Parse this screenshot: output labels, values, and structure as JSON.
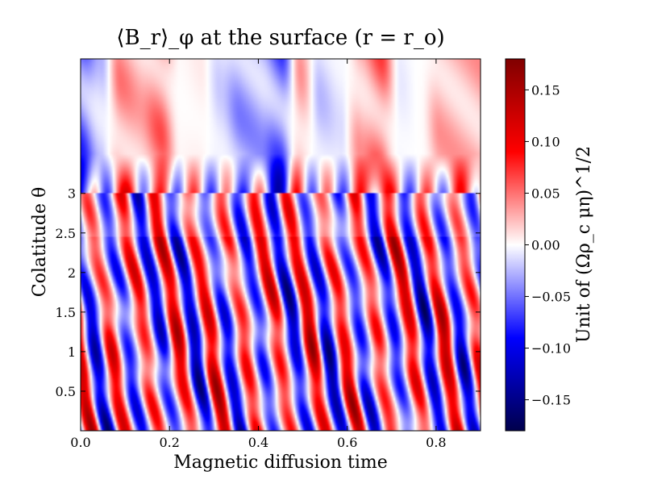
{
  "chart_data": {
    "type": "heatmap",
    "title": "⟨B_r⟩_φ at the surface (r = r_o)",
    "xlabel": "Magnetic diffusion time",
    "ylabel": "Colatitude θ",
    "colorbar_label": "Unit of (Ωρ_c μη)^1/2",
    "xlim": [
      0.0,
      0.9
    ],
    "ylim": [
      0.0,
      4.7
    ],
    "zlim": [
      -0.18,
      0.18
    ],
    "x_ticks": [
      0.0,
      0.2,
      0.4,
      0.6,
      0.8
    ],
    "x_tick_labels": [
      "0.0",
      "0.2",
      "0.4",
      "0.6",
      "0.8"
    ],
    "y_ticks": [
      0.5,
      1,
      1.5,
      2,
      2.5,
      3
    ],
    "y_tick_labels": [
      "0.5",
      "1",
      "1.5",
      "2",
      "2.5",
      "3"
    ],
    "colorbar_ticks": [
      0.15,
      0.1,
      0.05,
      0.0,
      -0.05,
      -0.1,
      -0.15
    ],
    "colorbar_tick_labels": [
      "0.15",
      "0.10",
      "0.05",
      "0.00",
      "−0.05",
      "−0.10",
      "−0.15"
    ],
    "colormap": "seismic",
    "colormap_stops": [
      "#00004c",
      "#0000ff",
      "#ffffff",
      "#ff0000",
      "#800000"
    ],
    "description_of_field": "Low colatitudes show strong tilted alternating stripes (dynamo waves) drifting to higher colatitude; above about 3 the field is weaker and broader.",
    "stripe_centers": [
      0.03,
      0.06,
      0.09,
      0.12,
      0.155,
      0.19,
      0.225,
      0.26,
      0.3,
      0.34,
      0.38,
      0.42,
      0.455,
      0.49,
      0.53,
      0.57,
      0.61,
      0.65,
      0.69,
      0.73,
      0.77,
      0.81,
      0.85,
      0.885
    ],
    "stripe_signs": [
      1,
      -1,
      1,
      -1,
      1,
      -1,
      1,
      -1,
      1,
      -1,
      1,
      -1,
      1,
      -1,
      1,
      -1,
      1,
      -1,
      1,
      -1,
      1,
      -1,
      1,
      -1
    ]
  }
}
